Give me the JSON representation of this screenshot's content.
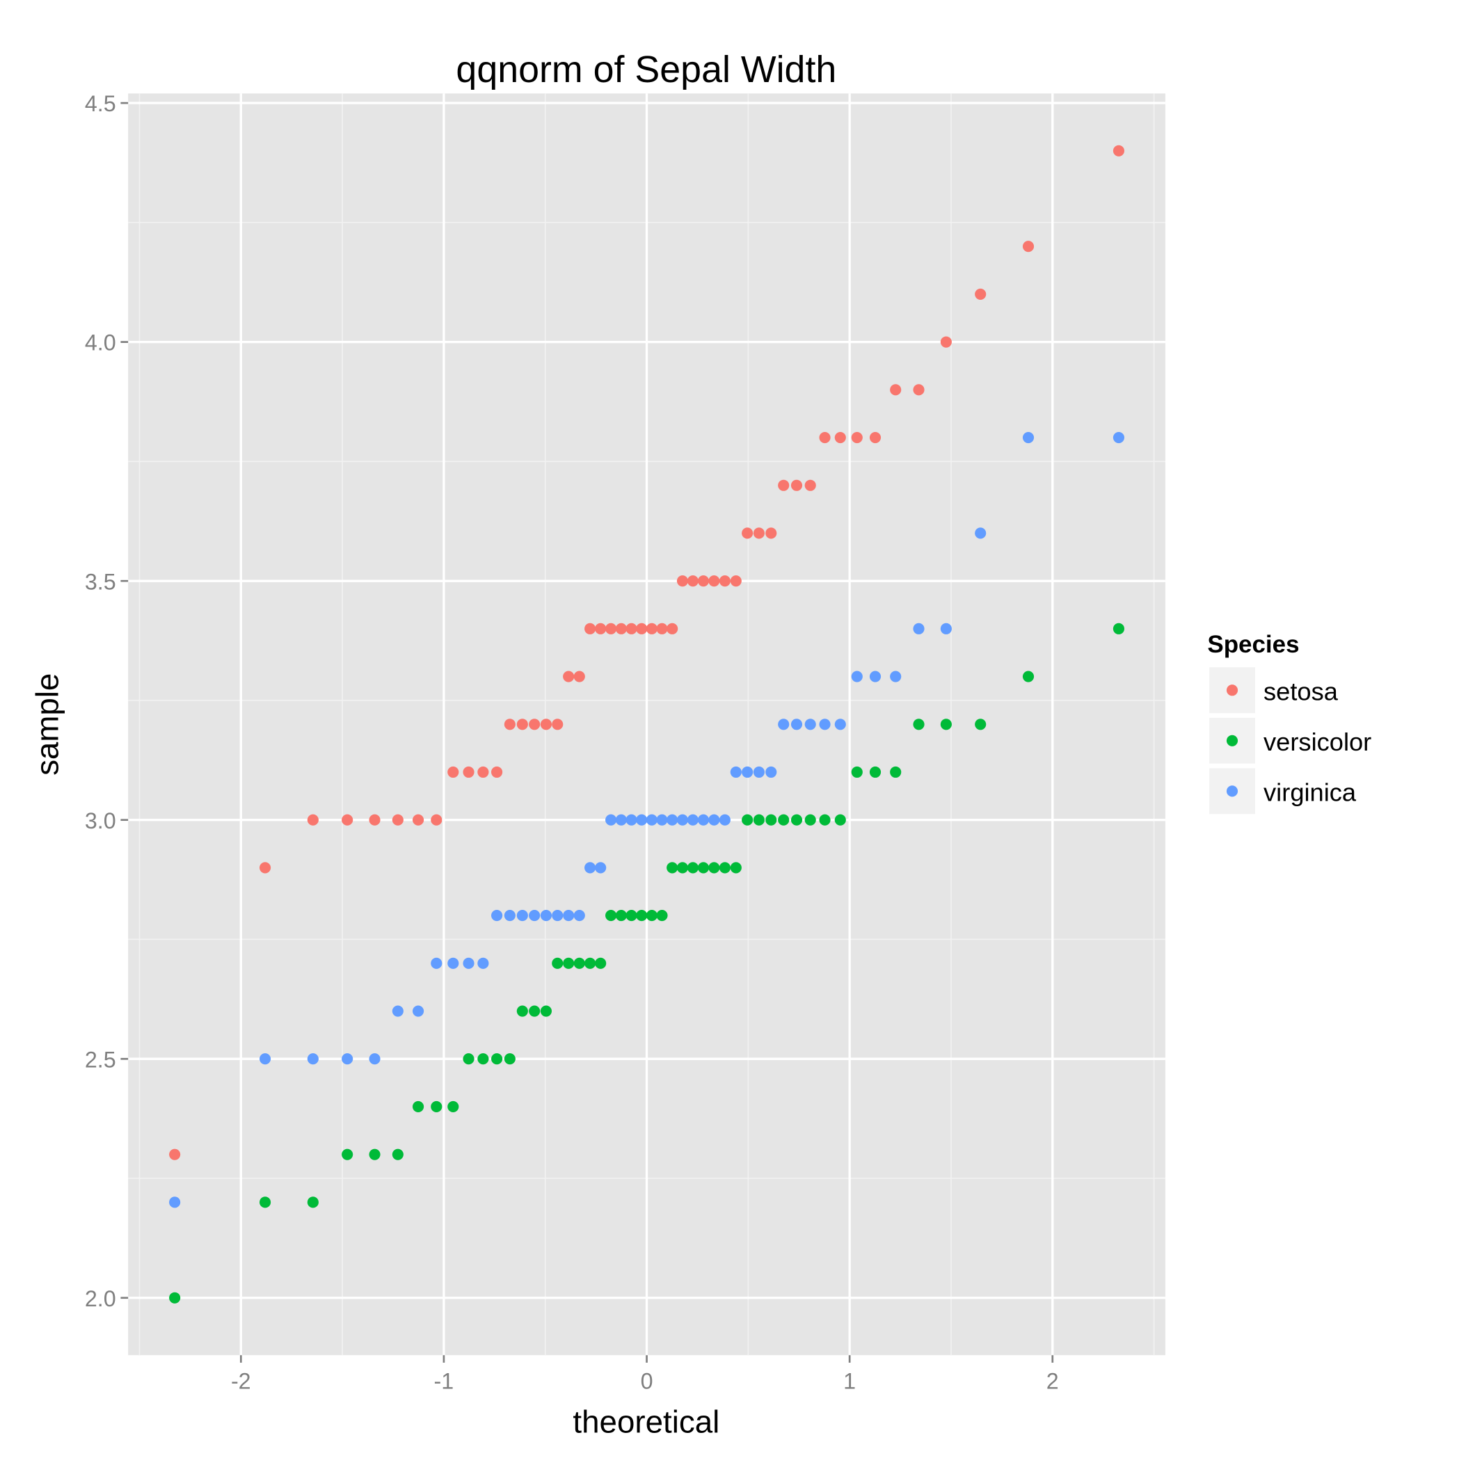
{
  "chart_data": {
    "type": "scatter",
    "title": "qqnorm of Sepal Width",
    "xlabel": "theoretical",
    "ylabel": "sample",
    "xlim": [
      -2.556,
      2.556
    ],
    "ylim": [
      1.88,
      4.52
    ],
    "x_ticks": [
      -2,
      -1,
      0,
      1,
      2
    ],
    "x_tick_labels": [
      "-2",
      "-1",
      "0",
      "1",
      "2"
    ],
    "y_ticks": [
      2.0,
      2.5,
      3.0,
      3.5,
      4.0,
      4.5
    ],
    "y_tick_labels": [
      "2.0",
      "2.5",
      "3.0",
      "3.5",
      "4.0",
      "4.5"
    ],
    "grid": true,
    "legend": {
      "title": "Species",
      "position": "right"
    },
    "theoretical_note": "x = normal quantile of (i - 0.5) / 50 for the i-th sorted sample in each species",
    "series": [
      {
        "name": "setosa",
        "color": "#F8766D",
        "sample_sorted": [
          2.3,
          2.9,
          3.0,
          3.0,
          3.0,
          3.0,
          3.0,
          3.0,
          3.1,
          3.1,
          3.1,
          3.1,
          3.2,
          3.2,
          3.2,
          3.2,
          3.2,
          3.3,
          3.3,
          3.4,
          3.4,
          3.4,
          3.4,
          3.4,
          3.4,
          3.4,
          3.4,
          3.4,
          3.5,
          3.5,
          3.5,
          3.5,
          3.5,
          3.5,
          3.6,
          3.6,
          3.6,
          3.7,
          3.7,
          3.7,
          3.8,
          3.8,
          3.8,
          3.8,
          3.9,
          3.9,
          4.0,
          4.1,
          4.2,
          4.4
        ]
      },
      {
        "name": "versicolor",
        "color": "#00BA38",
        "sample_sorted": [
          2.0,
          2.2,
          2.2,
          2.3,
          2.3,
          2.3,
          2.4,
          2.4,
          2.4,
          2.5,
          2.5,
          2.5,
          2.5,
          2.6,
          2.6,
          2.6,
          2.7,
          2.7,
          2.7,
          2.7,
          2.7,
          2.8,
          2.8,
          2.8,
          2.8,
          2.8,
          2.8,
          2.9,
          2.9,
          2.9,
          2.9,
          2.9,
          2.9,
          2.9,
          3.0,
          3.0,
          3.0,
          3.0,
          3.0,
          3.0,
          3.0,
          3.0,
          3.1,
          3.1,
          3.1,
          3.2,
          3.2,
          3.2,
          3.3,
          3.4
        ]
      },
      {
        "name": "virginica",
        "color": "#619CFF",
        "sample_sorted": [
          2.2,
          2.5,
          2.5,
          2.5,
          2.5,
          2.6,
          2.6,
          2.7,
          2.7,
          2.7,
          2.7,
          2.8,
          2.8,
          2.8,
          2.8,
          2.8,
          2.8,
          2.8,
          2.8,
          2.9,
          2.9,
          3.0,
          3.0,
          3.0,
          3.0,
          3.0,
          3.0,
          3.0,
          3.0,
          3.0,
          3.0,
          3.0,
          3.0,
          3.1,
          3.1,
          3.1,
          3.1,
          3.2,
          3.2,
          3.2,
          3.2,
          3.2,
          3.3,
          3.3,
          3.3,
          3.4,
          3.4,
          3.6,
          3.8,
          3.8
        ]
      }
    ]
  }
}
